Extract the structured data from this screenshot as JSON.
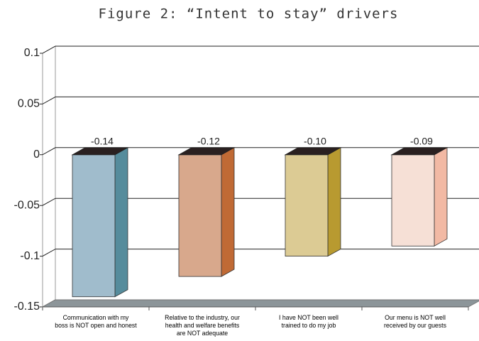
{
  "chart_data": {
    "type": "bar3d",
    "title": "Figure 2: “Intent to stay” drivers",
    "categories": [
      "Communication with my\nboss is NOT open and honest",
      "Relative to the industry, our\nhealth and welfare benefits\nare NOT adequate",
      "I have NOT been well\ntrained to do my job",
      "Our menu is NOT well\nreceived by our guests"
    ],
    "values": [
      -0.14,
      -0.12,
      -0.1,
      -0.09
    ],
    "value_labels": [
      "-0.14",
      "-0.12",
      "-0.10",
      "-0.09"
    ],
    "colors": [
      "#a0bccc",
      "#d8a88c",
      "#dccb94",
      "#f6e0d6"
    ],
    "side_colors": [
      "#568c9c",
      "#c06a35",
      "#b89a30",
      "#f2b9a4"
    ],
    "ylim": [
      -0.15,
      0.1
    ],
    "yticks": [
      0.1,
      0.05,
      0,
      -0.05,
      -0.1,
      -0.15
    ],
    "grid": true
  }
}
